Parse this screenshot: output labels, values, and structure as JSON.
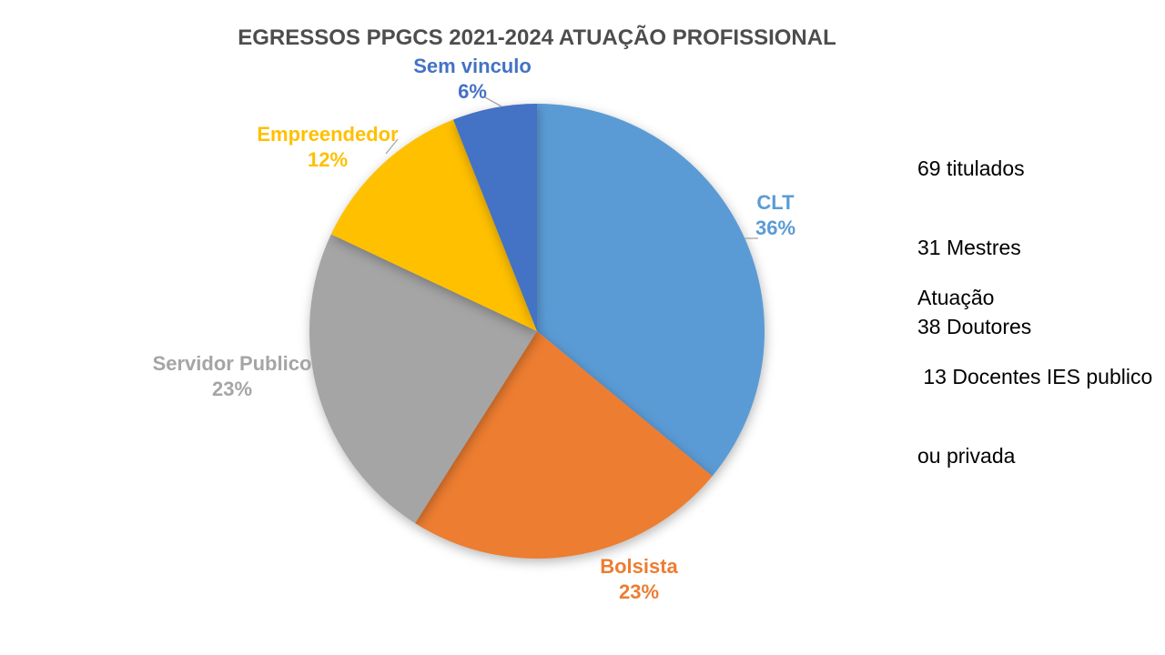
{
  "page": {
    "background_color": "#FFFFFF"
  },
  "chart_data": {
    "type": "pie",
    "title": "EGRESSOS PPGCS 2021-2024 ATUAÇÃO PROFISSIONAL",
    "title_color": "#4D4D4D",
    "start_angle_deg": 0,
    "direction": "clockwise",
    "legend": "none",
    "labels_position": "outside-end",
    "labels_format": "category name + percentage",
    "slices": [
      {
        "label": "CLT",
        "pct": 36,
        "pct_text": "36%",
        "color": "#5B9BD5"
      },
      {
        "label": "Bolsista",
        "pct": 23,
        "pct_text": "23%",
        "color": "#ED7D31"
      },
      {
        "label": "Servidor Publico",
        "pct": 23,
        "pct_text": "23%",
        "color": "#A5A5A5"
      },
      {
        "label": "Empreendedor",
        "pct": 12,
        "pct_text": "12%",
        "color": "#FFC000"
      },
      {
        "label": "Sem vinculo",
        "pct": 6,
        "pct_text": "6%",
        "color": "#4472C4"
      }
    ]
  },
  "annotations": {
    "totals": [
      "69 titulados",
      "31 Mestres",
      "38 Doutores"
    ],
    "atuacao": [
      "Atuação",
      " 13 Docentes IES publico",
      "ou privada"
    ],
    "text_color": "#000000"
  }
}
